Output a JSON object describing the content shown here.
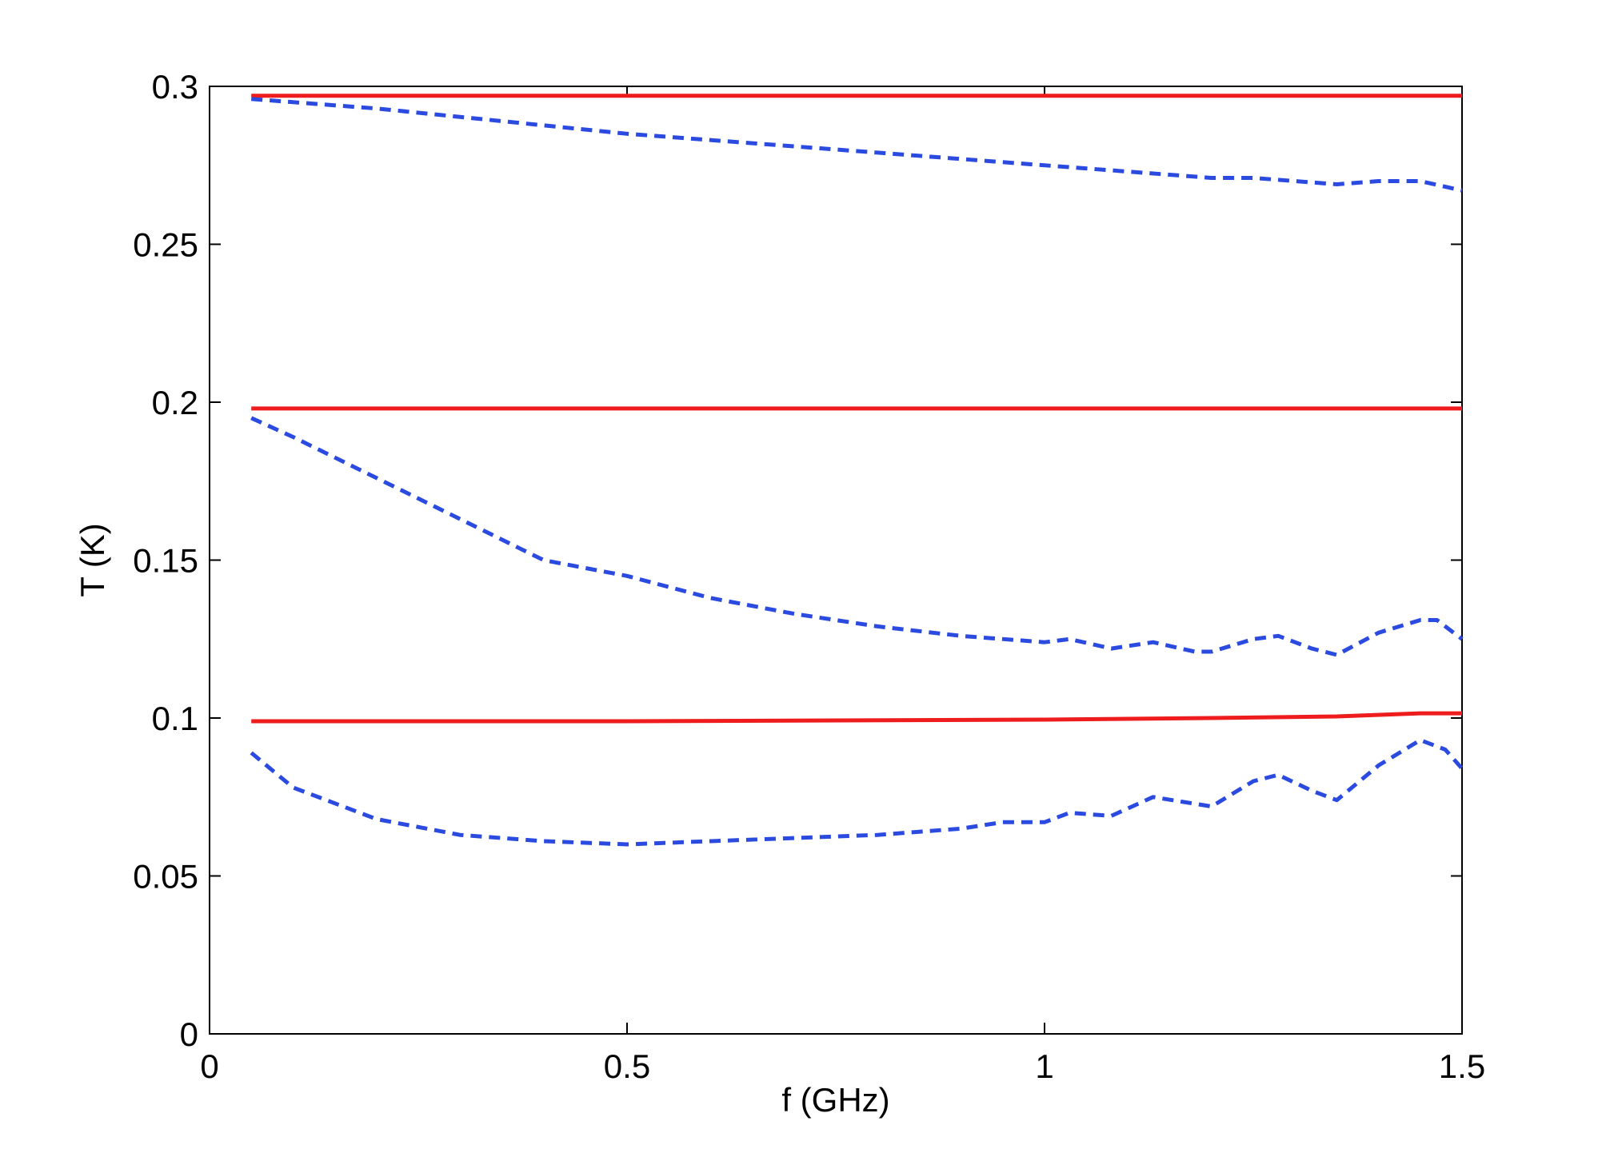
{
  "chart_data": {
    "type": "line",
    "title": "",
    "xlabel": "f (GHz)",
    "ylabel": "T (K)",
    "xlim": [
      0,
      1.5
    ],
    "ylim": [
      0,
      0.3
    ],
    "xticks": [
      0,
      0.5,
      1,
      1.5
    ],
    "xtick_labels": [
      "0",
      "0.5",
      "1",
      "1.5"
    ],
    "yticks": [
      0,
      0.05,
      0.1,
      0.15,
      0.2,
      0.25,
      0.3
    ],
    "ytick_labels": [
      "0",
      "0.05",
      "0.1",
      "0.15",
      "0.2",
      "0.25",
      "0.3"
    ],
    "grid": false,
    "legend": false,
    "colors": {
      "solid": "#ee1c1c",
      "dashed": "#2a4ae0"
    },
    "series": [
      {
        "style": "solid",
        "x": [
          0.05,
          0.5,
          1.0,
          1.5
        ],
        "y": [
          0.297,
          0.297,
          0.297,
          0.297
        ]
      },
      {
        "style": "dashed",
        "x": [
          0.05,
          0.2,
          0.35,
          0.5,
          0.65,
          0.8,
          0.95,
          1.1,
          1.2,
          1.25,
          1.3,
          1.35,
          1.4,
          1.45,
          1.5
        ],
        "y": [
          0.296,
          0.293,
          0.289,
          0.285,
          0.282,
          0.279,
          0.276,
          0.273,
          0.271,
          0.271,
          0.27,
          0.269,
          0.27,
          0.27,
          0.267
        ]
      },
      {
        "style": "solid",
        "x": [
          0.05,
          0.5,
          1.0,
          1.5
        ],
        "y": [
          0.198,
          0.198,
          0.198,
          0.198
        ]
      },
      {
        "style": "dashed",
        "x": [
          0.05,
          0.1,
          0.2,
          0.3,
          0.4,
          0.5,
          0.6,
          0.7,
          0.8,
          0.9,
          1.0,
          1.03,
          1.08,
          1.13,
          1.18,
          1.2,
          1.25,
          1.28,
          1.32,
          1.35,
          1.4,
          1.45,
          1.47,
          1.5
        ],
        "y": [
          0.195,
          0.189,
          0.176,
          0.163,
          0.15,
          0.145,
          0.138,
          0.133,
          0.129,
          0.126,
          0.124,
          0.125,
          0.122,
          0.124,
          0.121,
          0.121,
          0.125,
          0.126,
          0.122,
          0.12,
          0.127,
          0.131,
          0.131,
          0.125
        ]
      },
      {
        "style": "solid",
        "x": [
          0.05,
          0.5,
          1.0,
          1.2,
          1.35,
          1.45,
          1.5
        ],
        "y": [
          0.099,
          0.099,
          0.0995,
          0.1,
          0.1005,
          0.1015,
          0.1015
        ]
      },
      {
        "style": "dashed",
        "x": [
          0.05,
          0.1,
          0.2,
          0.3,
          0.4,
          0.5,
          0.6,
          0.7,
          0.8,
          0.9,
          0.95,
          1.0,
          1.03,
          1.08,
          1.13,
          1.2,
          1.25,
          1.28,
          1.32,
          1.35,
          1.4,
          1.45,
          1.48,
          1.5
        ],
        "y": [
          0.089,
          0.078,
          0.068,
          0.063,
          0.061,
          0.06,
          0.061,
          0.062,
          0.063,
          0.065,
          0.067,
          0.067,
          0.07,
          0.069,
          0.075,
          0.072,
          0.08,
          0.082,
          0.077,
          0.074,
          0.085,
          0.093,
          0.09,
          0.084
        ]
      }
    ]
  }
}
